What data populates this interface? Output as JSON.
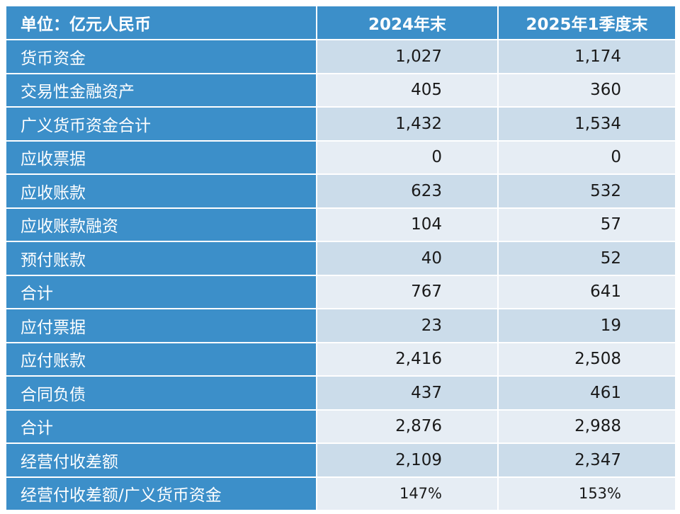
{
  "colors": {
    "header_bg": "#3c8fc9",
    "label_bg": "#3c8fc9",
    "row_dark": "#cbdcea",
    "row_light": "#e6edf4"
  },
  "header": {
    "unit": "单位：亿元人民币",
    "col1": "2024年末",
    "col2": "2025年1季度末"
  },
  "rows": [
    {
      "label": "货币资金",
      "y2024": "1,027",
      "y2025q1": "1,174"
    },
    {
      "label": "交易性金融资产",
      "y2024": "405",
      "y2025q1": "360"
    },
    {
      "label": "广义货币资金合计",
      "y2024": "1,432",
      "y2025q1": "1,534"
    },
    {
      "label": "应收票据",
      "y2024": "0",
      "y2025q1": "0"
    },
    {
      "label": "应收账款",
      "y2024": "623",
      "y2025q1": "532"
    },
    {
      "label": "应收账款融资",
      "y2024": "104",
      "y2025q1": "57"
    },
    {
      "label": "预付账款",
      "y2024": "40",
      "y2025q1": "52"
    },
    {
      "label": "合计",
      "y2024": "767",
      "y2025q1": "641"
    },
    {
      "label": "应付票据",
      "y2024": "23",
      "y2025q1": "19"
    },
    {
      "label": "应付账款",
      "y2024": "2,416",
      "y2025q1": "2,508"
    },
    {
      "label": "合同负债",
      "y2024": "437",
      "y2025q1": "461"
    },
    {
      "label": "合计",
      "y2024": "2,876",
      "y2025q1": "2,988"
    },
    {
      "label": "经营付收差额",
      "y2024": "2,109",
      "y2025q1": "2,347"
    },
    {
      "label": "经营付收差额/广义货币资金",
      "y2024": "147%",
      "y2025q1": "153%"
    }
  ]
}
